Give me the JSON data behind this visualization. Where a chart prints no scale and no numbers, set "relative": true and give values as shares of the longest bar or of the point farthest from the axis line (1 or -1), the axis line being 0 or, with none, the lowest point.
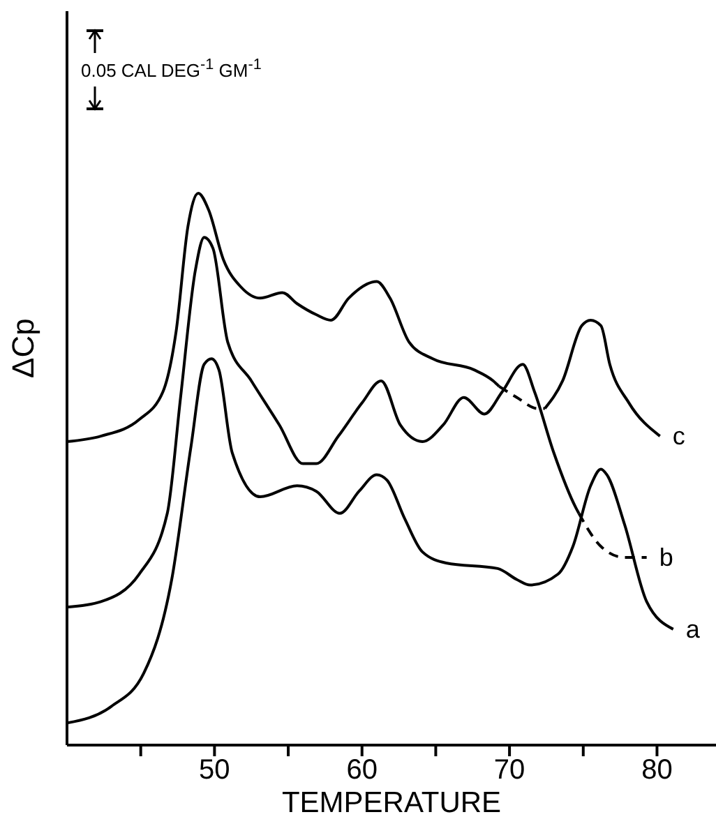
{
  "chart_data": {
    "type": "line",
    "relative": true,
    "xlabel": "TEMPERATURE",
    "ylabel": "ΔCp",
    "annotations": [
      "0.05 CAL DEG$^{-1}$ GM$^{-1}$"
    ],
    "xlim": [
      40,
      84
    ],
    "xticks": [
      {
        "value": 45,
        "label": null
      },
      50,
      {
        "value": 55,
        "label": null
      },
      60,
      {
        "value": 65,
        "label": null
      },
      70,
      {
        "value": 75,
        "label": null
      },
      80
    ],
    "grid": false,
    "legend": false,
    "marker": "none",
    "line_style": "solid",
    "series": [
      {
        "color": "#000000",
        "x": [
          40.0,
          42.3,
          44.9,
          46.5,
          47.4,
          48.2,
          48.9,
          49.6,
          50.6,
          51.8,
          53.1,
          54.6,
          55.6,
          56.9,
          57.9,
          59.1,
          61.0,
          61.9,
          63.2,
          64.8,
          67.6,
          68.9,
          69.3
        ],
        "values": [
          0.55,
          0.56,
          0.59,
          0.64,
          0.75,
          0.94,
          1.0,
          0.97,
          0.88,
          0.83,
          0.81,
          0.82,
          0.8,
          0.78,
          0.77,
          0.81,
          0.84,
          0.81,
          0.73,
          0.7,
          0.68,
          0.66,
          0.65
        ]
      },
      {
        "color": "#000000",
        "line_style": "dashed",
        "x": [
          69.3,
          70.5,
          71.9,
          72.4
        ],
        "values": [
          0.65,
          0.63,
          0.61,
          0.61
        ]
      },
      {
        "name": "c",
        "color": "#000000",
        "x": [
          72.4,
          73.6,
          74.9,
          75.5,
          76.2,
          76.8,
          78.1,
          80.2
        ],
        "values": [
          0.61,
          0.66,
          0.76,
          0.77,
          0.76,
          0.69,
          0.62,
          0.56
        ]
      },
      {
        "color": "#000000",
        "x": [
          40.0,
          42.3,
          44.9,
          46.8,
          47.7,
          48.7,
          49.3,
          49.9,
          50.9,
          52.5,
          54.4,
          56.0,
          56.9,
          58.4,
          60.0,
          61.3,
          62.6,
          64.1,
          65.5,
          66.9,
          68.3,
          69.5,
          70.9,
          71.7,
          73.0,
          74.5,
          74.7
        ],
        "values": [
          0.25,
          0.26,
          0.31,
          0.42,
          0.63,
          0.86,
          0.92,
          0.9,
          0.73,
          0.66,
          0.58,
          0.51,
          0.51,
          0.56,
          0.62,
          0.66,
          0.58,
          0.55,
          0.58,
          0.63,
          0.6,
          0.64,
          0.69,
          0.64,
          0.53,
          0.43,
          0.42
        ]
      },
      {
        "name": "b",
        "color": "#000000",
        "line_style": "dashed",
        "x": [
          74.7,
          76.2,
          77.8,
          79.3
        ],
        "values": [
          0.42,
          0.36,
          0.34,
          0.34
        ]
      },
      {
        "name": "a",
        "color": "#000000",
        "x": [
          40.0,
          43.0,
          45.2,
          47.1,
          48.4,
          49.3,
          49.8,
          50.3,
          51.2,
          53.1,
          55.6,
          56.9,
          58.5,
          59.8,
          61.0,
          61.7,
          62.9,
          64.1,
          65.7,
          69.2,
          70.5,
          71.4,
          73.3,
          74.3,
          75.5,
          76.2,
          76.6,
          77.8,
          79.3,
          81.1
        ],
        "values": [
          0.04,
          0.07,
          0.13,
          0.3,
          0.54,
          0.69,
          0.7,
          0.68,
          0.53,
          0.45,
          0.47,
          0.46,
          0.42,
          0.46,
          0.49,
          0.48,
          0.41,
          0.35,
          0.33,
          0.32,
          0.3,
          0.29,
          0.31,
          0.36,
          0.47,
          0.5,
          0.49,
          0.4,
          0.26,
          0.21
        ]
      }
    ]
  }
}
